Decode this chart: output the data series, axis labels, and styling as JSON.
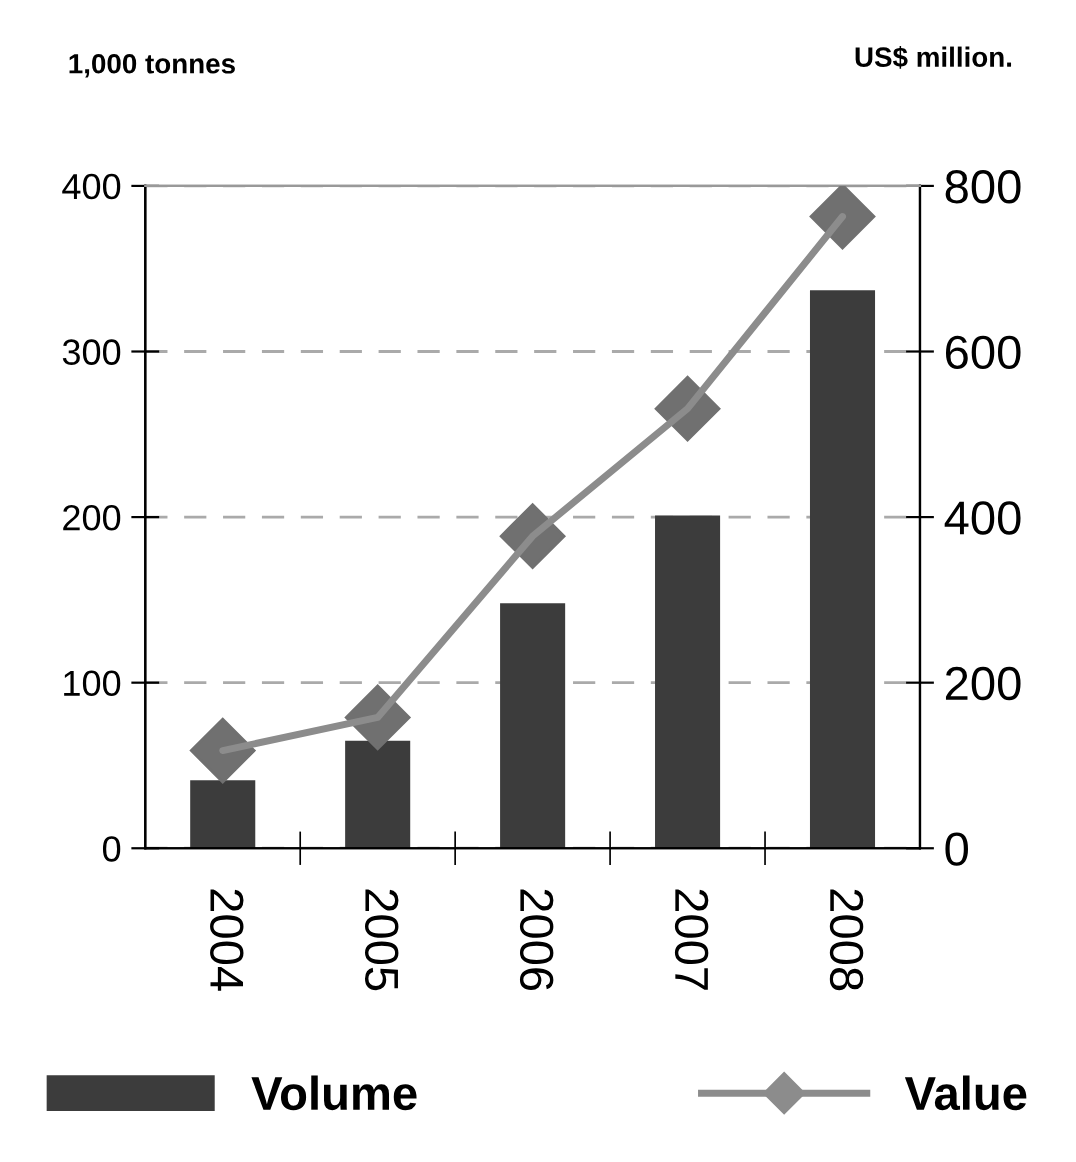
{
  "chart_data": {
    "type": "bar",
    "categories": [
      "2004",
      "2005",
      "2006",
      "2007",
      "2008"
    ],
    "series": [
      {
        "name": "Volume",
        "type": "bar",
        "color": "#3c3c3c",
        "values": [
          41,
          65,
          148,
          201,
          337
        ]
      },
      {
        "name": "Value",
        "type": "line",
        "axis": "y2",
        "color": "#8c8c8c",
        "marker": "diamond",
        "values": [
          118,
          158,
          377,
          531,
          763
        ]
      }
    ],
    "ylabel": "1,000 tonnes",
    "y2label": "US$ million.",
    "ylim": [
      0,
      400
    ],
    "yticks": [
      0,
      100,
      200,
      300,
      400
    ],
    "y2lim": [
      0,
      800
    ],
    "y2ticks": [
      0,
      200,
      400,
      600,
      800
    ],
    "grid": "y",
    "legend": "bottom"
  }
}
